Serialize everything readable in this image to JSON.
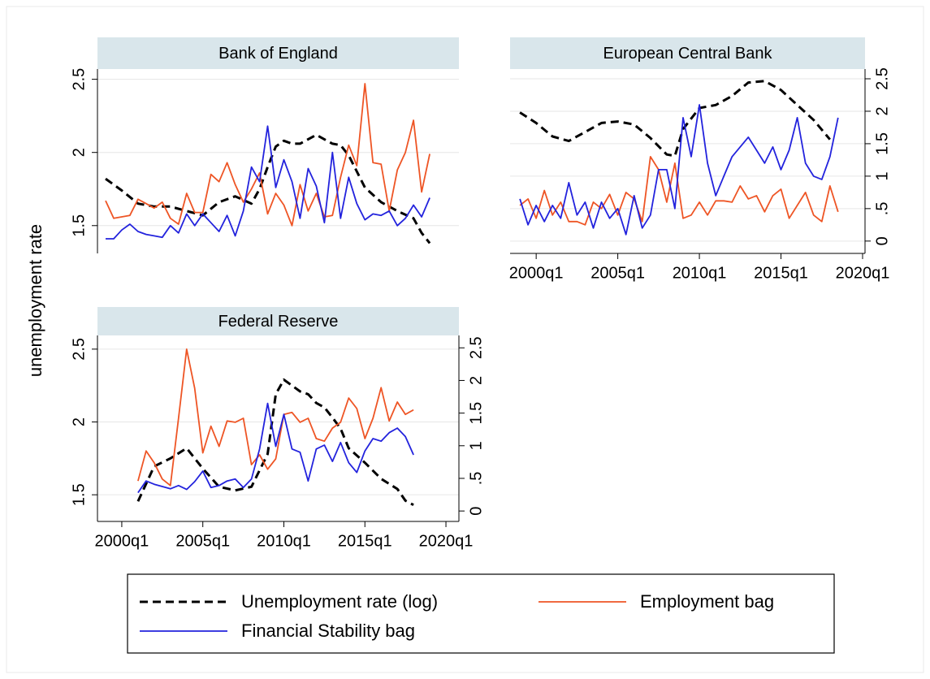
{
  "chart_data": {
    "type": "line",
    "y_label": "unemployment rate",
    "grid": true,
    "legend": {
      "series": [
        {
          "name": "Unemployment rate (log)",
          "color": "#000000",
          "dash": true
        },
        {
          "name": "Employment bag",
          "color": "#ee5525",
          "dash": false
        },
        {
          "name": "Financial Stability bag",
          "color": "#2323dd",
          "dash": false
        }
      ]
    },
    "panels": [
      {
        "title": "Bank of England",
        "xlim": [
          1998.5,
          2020.8
        ],
        "ylim": [
          1.31,
          2.57
        ],
        "yticks": [
          1.5,
          2,
          2.5
        ],
        "series": [
          {
            "axis": "y",
            "x": [
              1999,
              2000,
              2001,
              2002,
              2003,
              2004,
              2005,
              2006,
              2007,
              2008,
              2008.5,
              2009,
              2009.5,
              2010,
              2010.5,
              2011,
              2011.5,
              2012,
              2013,
              2013.5,
              2014,
              2015,
              2016,
              2017,
              2018,
              2018.5,
              2019
            ],
            "values": [
              1.82,
              1.74,
              1.65,
              1.63,
              1.63,
              1.6,
              1.57,
              1.66,
              1.7,
              1.65,
              1.75,
              1.9,
              2.04,
              2.08,
              2.06,
              2.06,
              2.09,
              2.12,
              2.06,
              2.05,
              1.98,
              1.76,
              1.66,
              1.6,
              1.55,
              1.45,
              1.38
            ]
          },
          {
            "axis": "y",
            "x": [
              1999,
              1999.5,
              2000,
              2000.5,
              2001,
              2001.5,
              2002,
              2002.5,
              2003,
              2003.5,
              2004,
              2004.5,
              2005,
              2005.5,
              2006,
              2006.5,
              2007,
              2007.5,
              2008,
              2008.5,
              2009,
              2009.5,
              2010,
              2010.5,
              2011,
              2011.5,
              2012,
              2012.5,
              2013,
              2013.5,
              2014,
              2014.5,
              2015,
              2015.5,
              2016,
              2016.5,
              2017,
              2017.5,
              2018,
              2018.5,
              2019
            ],
            "values": [
              1.67,
              1.55,
              1.56,
              1.57,
              1.68,
              1.65,
              1.62,
              1.66,
              1.55,
              1.51,
              1.72,
              1.59,
              1.59,
              1.85,
              1.8,
              1.93,
              1.78,
              1.66,
              1.75,
              1.86,
              1.58,
              1.72,
              1.64,
              1.5,
              1.78,
              1.6,
              1.72,
              1.56,
              1.57,
              1.83,
              2.05,
              1.91,
              2.47,
              1.93,
              1.92,
              1.6,
              1.88,
              2.0,
              2.22,
              1.73,
              1.99
            ]
          },
          {
            "axis": "y",
            "x": [
              1999,
              1999.5,
              2000,
              2000.5,
              2001,
              2001.5,
              2002,
              2002.5,
              2003,
              2003.5,
              2004,
              2004.5,
              2005,
              2005.5,
              2006,
              2006.5,
              2007,
              2007.5,
              2008,
              2008.5,
              2009,
              2009.5,
              2010,
              2010.5,
              2011,
              2011.5,
              2012,
              2012.5,
              2013,
              2013.5,
              2014,
              2014.5,
              2015,
              2015.5,
              2016,
              2016.5,
              2017,
              2017.5,
              2018,
              2018.5,
              2019
            ],
            "values": [
              1.41,
              1.41,
              1.47,
              1.51,
              1.46,
              1.44,
              1.43,
              1.42,
              1.5,
              1.45,
              1.58,
              1.5,
              1.58,
              1.52,
              1.46,
              1.57,
              1.43,
              1.6,
              1.9,
              1.8,
              2.18,
              1.76,
              1.95,
              1.8,
              1.55,
              1.89,
              1.77,
              1.52,
              2.0,
              1.55,
              1.83,
              1.65,
              1.54,
              1.58,
              1.57,
              1.6,
              1.5,
              1.55,
              1.64,
              1.56,
              1.69
            ]
          }
        ]
      },
      {
        "title": "European Central Bank",
        "xlim": [
          1998.4,
          2020.15
        ],
        "xticks": [
          {
            "value": 2000,
            "label": "2000q1"
          },
          {
            "value": 2005,
            "label": "2005q1"
          },
          {
            "value": 2010,
            "label": "2010q1"
          },
          {
            "value": 2015,
            "label": "2015q1"
          },
          {
            "value": 2020,
            "label": "2020q1"
          }
        ],
        "ylim": [
          1.33,
          2.56
        ],
        "y2lim": [
          -0.19,
          2.65
        ],
        "y2ticks": [
          0,
          {
            "value": 0.5,
            "label": ".5"
          },
          1,
          1.5,
          2,
          2.5
        ],
        "series": [
          {
            "axis": "y",
            "x": [
              1999,
              2000,
              2001,
              2002,
              2003,
              2004,
              2005,
              2006,
              2007,
              2008,
              2008.5,
              2009,
              2010,
              2011,
              2012,
              2013,
              2014,
              2015,
              2016,
              2017,
              2018
            ],
            "values": [
              2.27,
              2.2,
              2.11,
              2.08,
              2.14,
              2.2,
              2.21,
              2.19,
              2.1,
              1.99,
              1.98,
              2.16,
              2.3,
              2.32,
              2.38,
              2.47,
              2.48,
              2.42,
              2.32,
              2.22,
              2.09
            ]
          },
          {
            "axis": "y2",
            "x": [
              1999,
              1999.5,
              2000,
              2000.5,
              2001,
              2001.5,
              2002,
              2002.5,
              2003,
              2003.5,
              2004,
              2004.5,
              2005,
              2005.5,
              2006,
              2006.5,
              2007,
              2007.5,
              2008,
              2008.5,
              2009,
              2009.5,
              2010,
              2010.5,
              2011,
              2011.5,
              2012,
              2012.5,
              2013,
              2013.5,
              2014,
              2014.5,
              2015,
              2015.5,
              2016,
              2016.5,
              2017,
              2017.5,
              2018,
              2018.5
            ],
            "values": [
              0.55,
              0.65,
              0.35,
              0.78,
              0.4,
              0.6,
              0.3,
              0.3,
              0.25,
              0.6,
              0.5,
              0.72,
              0.4,
              0.75,
              0.65,
              0.3,
              1.3,
              1.1,
              0.6,
              1.2,
              0.35,
              0.4,
              0.6,
              0.4,
              0.62,
              0.62,
              0.6,
              0.85,
              0.65,
              0.7,
              0.45,
              0.7,
              0.8,
              0.35,
              0.55,
              0.75,
              0.4,
              0.3,
              0.85,
              0.45
            ]
          },
          {
            "axis": "y2",
            "x": [
              1999,
              1999.5,
              2000,
              2000.5,
              2001,
              2001.5,
              2002,
              2002.5,
              2003,
              2003.5,
              2004,
              2004.5,
              2005,
              2005.5,
              2006,
              2006.5,
              2007,
              2007.5,
              2008,
              2008.5,
              2009,
              2009.5,
              2010,
              2010.5,
              2011,
              2011.5,
              2012,
              2012.5,
              2013,
              2013.5,
              2014,
              2014.5,
              2015,
              2015.5,
              2016,
              2016.5,
              2017,
              2017.5,
              2018,
              2018.5
            ],
            "values": [
              0.65,
              0.25,
              0.55,
              0.3,
              0.55,
              0.35,
              0.9,
              0.4,
              0.6,
              0.2,
              0.6,
              0.35,
              0.5,
              0.1,
              0.7,
              0.2,
              0.4,
              1.1,
              1.1,
              0.5,
              1.9,
              1.3,
              2.1,
              1.2,
              0.7,
              1.0,
              1.3,
              1.45,
              1.6,
              1.4,
              1.2,
              1.45,
              1.1,
              1.4,
              1.9,
              1.2,
              1.0,
              0.95,
              1.3,
              1.9
            ]
          }
        ]
      },
      {
        "title": "Federal Reserve",
        "xlim": [
          1998.5,
          2020.8
        ],
        "xticks": [
          {
            "value": 2000,
            "label": "2000q1"
          },
          {
            "value": 2005,
            "label": "2005q1"
          },
          {
            "value": 2010,
            "label": "2010q1"
          },
          {
            "value": 2015,
            "label": "2015q1"
          },
          {
            "value": 2020,
            "label": "2020q1"
          }
        ],
        "ylim": [
          1.317,
          2.594
        ],
        "yticks": [
          1.5,
          2,
          2.5
        ],
        "y2lim": [
          -0.16,
          2.69
        ],
        "y2ticks": [
          0,
          {
            "value": 0.5,
            "label": ".5"
          },
          1,
          1.5,
          2,
          2.5
        ],
        "series": [
          {
            "axis": "y",
            "x": [
              2001,
              2002,
              2003,
              2004,
              2005,
              2006,
              2007,
              2008,
              2009,
              2009.5,
              2010,
              2010.5,
              2011,
              2011.5,
              2012,
              2012.5,
              2013,
              2013.5,
              2014,
              2015,
              2016,
              2017,
              2017.5,
              2018
            ],
            "values": [
              1.455,
              1.695,
              1.75,
              1.82,
              1.68,
              1.555,
              1.53,
              1.555,
              1.78,
              2.19,
              2.29,
              2.25,
              2.21,
              2.19,
              2.13,
              2.1,
              2.03,
              1.955,
              1.82,
              1.72,
              1.61,
              1.54,
              1.46,
              1.43
            ]
          },
          {
            "axis": "y2",
            "x": [
              2001,
              2001.5,
              2002,
              2002.5,
              2003,
              2003.5,
              2004,
              2004.5,
              2005,
              2005.5,
              2006,
              2006.5,
              2007,
              2007.5,
              2008,
              2008.5,
              2009,
              2009.5,
              2010,
              2010.5,
              2011,
              2011.5,
              2012,
              2012.5,
              2013,
              2013.5,
              2014,
              2014.5,
              2015,
              2015.5,
              2016,
              2016.5,
              2017,
              2017.5,
              2018
            ],
            "values": [
              0.46,
              0.92,
              0.74,
              0.49,
              0.39,
              1.42,
              2.48,
              1.88,
              0.89,
              1.3,
              0.99,
              1.38,
              1.36,
              1.42,
              0.71,
              0.86,
              0.64,
              0.8,
              1.48,
              1.51,
              1.36,
              1.42,
              1.11,
              1.07,
              1.27,
              1.36,
              1.73,
              1.57,
              1.11,
              1.42,
              1.89,
              1.38,
              1.67,
              1.48,
              1.55
            ]
          },
          {
            "axis": "y2",
            "x": [
              2001,
              2001.5,
              2002,
              2003,
              2003.5,
              2004,
              2004.5,
              2005,
              2005.5,
              2006,
              2006.5,
              2007,
              2007.5,
              2008,
              2008.5,
              2009,
              2009.5,
              2010,
              2010.5,
              2011,
              2011.5,
              2012,
              2012.5,
              2013,
              2013.5,
              2014,
              2014.5,
              2015,
              2015.5,
              2016,
              2016.5,
              2017,
              2017.5,
              2018
            ],
            "values": [
              0.28,
              0.46,
              0.41,
              0.34,
              0.39,
              0.33,
              0.45,
              0.61,
              0.36,
              0.39,
              0.46,
              0.49,
              0.36,
              0.49,
              0.95,
              1.65,
              0.99,
              1.48,
              0.95,
              0.9,
              0.46,
              0.95,
              1.01,
              0.76,
              1.05,
              0.74,
              0.59,
              0.92,
              1.11,
              1.07,
              1.2,
              1.27,
              1.14,
              0.86
            ]
          }
        ]
      }
    ]
  }
}
